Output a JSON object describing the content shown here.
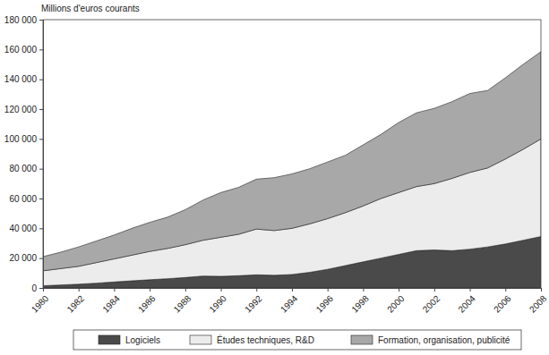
{
  "chart_data": {
    "type": "area",
    "y_label": "Millions d'euros courants",
    "x": [
      1980,
      1981,
      1982,
      1983,
      1984,
      1985,
      1986,
      1987,
      1988,
      1989,
      1990,
      1991,
      1992,
      1993,
      1994,
      1995,
      1996,
      1997,
      1998,
      1999,
      2000,
      2001,
      2002,
      2003,
      2004,
      2005,
      2006,
      2007,
      2008
    ],
    "series": [
      {
        "name": "Logiciels",
        "color": "#4a4a4a",
        "values": [
          1500,
          2000,
          2500,
          3200,
          4000,
          4800,
          5500,
          6200,
          7000,
          8000,
          7800,
          8200,
          8800,
          8500,
          9000,
          10500,
          12500,
          15000,
          17500,
          20000,
          22500,
          25000,
          25500,
          25000,
          26000,
          27500,
          29500,
          32000,
          34500
        ]
      },
      {
        "name": "Études techniques, R&D",
        "color": "#ececec",
        "values": [
          10000,
          11000,
          12000,
          13800,
          15500,
          17200,
          19000,
          20300,
          22000,
          24000,
          26200,
          27800,
          30700,
          30000,
          31000,
          32500,
          34000,
          35500,
          37500,
          40000,
          41500,
          43000,
          44500,
          48500,
          51500,
          53000,
          57000,
          61000,
          65500
        ]
      },
      {
        "name": "Formation, organisation, publicité",
        "color": "#a8a8a8",
        "values": [
          9500,
          11000,
          13000,
          14500,
          16000,
          18000,
          19500,
          21000,
          23500,
          27000,
          30000,
          31500,
          33500,
          35500,
          36500,
          37000,
          38000,
          38500,
          41000,
          43000,
          47000,
          49500,
          50500,
          51500,
          53000,
          52000,
          54500,
          57000,
          58500
        ]
      }
    ],
    "stacked": true,
    "xlim": [
      1980,
      2008
    ],
    "xticks": [
      1980,
      1982,
      1984,
      1986,
      1988,
      1990,
      1992,
      1994,
      1996,
      1998,
      2000,
      2002,
      2004,
      2006,
      2008
    ],
    "ylim": [
      0,
      180000
    ],
    "yticks": [
      0,
      {
        "value": 20000,
        "label": "20 000"
      },
      {
        "value": 40000,
        "label": "40 000"
      },
      {
        "value": 60000,
        "label": "60 000"
      },
      {
        "value": 80000,
        "label": "80 000"
      },
      {
        "value": 100000,
        "label": "100 000"
      },
      {
        "value": 120000,
        "label": "120 000"
      },
      {
        "value": 140000,
        "label": "140 000"
      },
      {
        "value": 160000,
        "label": "160 000"
      },
      {
        "value": 180000,
        "label": "180 000"
      }
    ],
    "grid": false,
    "legend": "bottom"
  }
}
